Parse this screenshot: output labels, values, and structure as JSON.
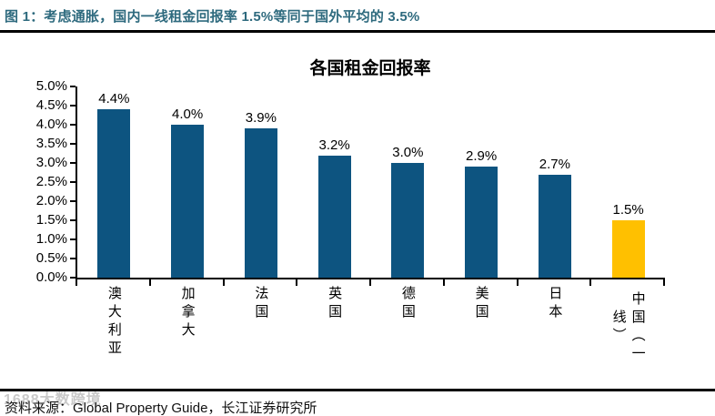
{
  "header": {
    "figure_label": "图 1：考虑通胀，国内一线租金回报率 1.5%等同于国外平均的 3.5%"
  },
  "chart_data": {
    "type": "bar",
    "title": "各国租金回报率",
    "categories": [
      "澳大利亚",
      "加拿大",
      "法国",
      "英国",
      "德国",
      "美国",
      "日本",
      "中国（一线）"
    ],
    "values": [
      4.4,
      4.0,
      3.9,
      3.2,
      3.0,
      2.9,
      2.7,
      1.5
    ],
    "value_labels": [
      "4.4%",
      "4.0%",
      "3.9%",
      "3.2%",
      "3.0%",
      "2.9%",
      "2.7%",
      "1.5%"
    ],
    "bar_colors": [
      "#0D5480",
      "#0D5480",
      "#0D5480",
      "#0D5480",
      "#0D5480",
      "#0D5480",
      "#0D5480",
      "#FFC000"
    ],
    "ylim": [
      0,
      5
    ],
    "yticks": [
      "5.0%",
      "4.5%",
      "4.0%",
      "3.5%",
      "3.0%",
      "2.5%",
      "2.0%",
      "1.5%",
      "1.0%",
      "0.5%",
      "0.0%"
    ],
    "xlabel": "",
    "ylabel": "",
    "grid": false,
    "legend_position": "none",
    "axis_color": "#000000"
  },
  "footer": {
    "source_text": "资料来源：Global Property Guide，长江证券研究所",
    "watermark": "1688大数跨境"
  },
  "colors": {
    "caption_text": "#2E6A7E",
    "bar_default": "#0D5480",
    "bar_highlight": "#FFC000",
    "rule": "#000000"
  }
}
